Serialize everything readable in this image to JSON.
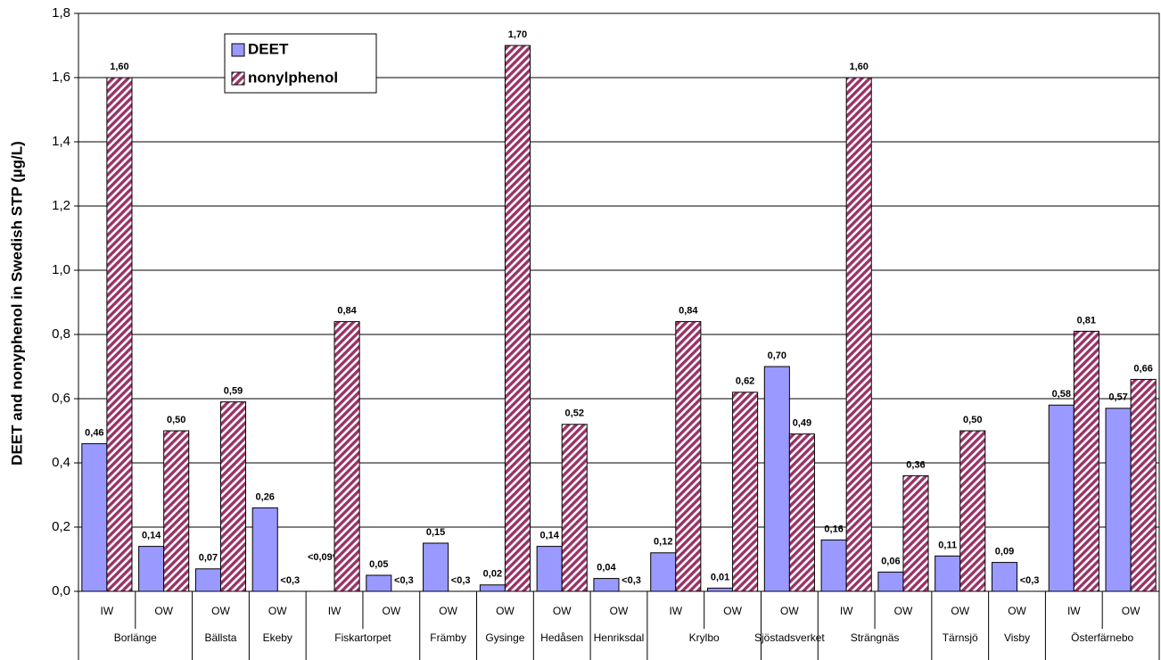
{
  "chart_data": {
    "type": "bar",
    "y_label": "DEET and nonyphenol in Swedish STP (µg/L)",
    "groups": [
      {
        "label": "Borlänge",
        "categories": [
          "IW",
          "OW"
        ]
      },
      {
        "label": "Bällsta",
        "categories": [
          "OW"
        ]
      },
      {
        "label": "Ekeby",
        "categories": [
          "OW"
        ]
      },
      {
        "label": "Fiskartorpet",
        "categories": [
          "IW",
          "OW"
        ]
      },
      {
        "label": "Främby",
        "categories": [
          "OW"
        ]
      },
      {
        "label": "Gysinge",
        "categories": [
          "OW"
        ]
      },
      {
        "label": "Hedåsen",
        "categories": [
          "OW"
        ]
      },
      {
        "label": "Henriksdal",
        "categories": [
          "OW"
        ]
      },
      {
        "label": "Krylbo",
        "categories": [
          "IW",
          "OW"
        ]
      },
      {
        "label": "Sjöstadsverket",
        "categories": [
          "OW"
        ]
      },
      {
        "label": "Strängnäs",
        "categories": [
          "IW",
          "OW"
        ]
      },
      {
        "label": "Tärnsjö",
        "categories": [
          "OW"
        ]
      },
      {
        "label": "Visby",
        "categories": [
          "OW"
        ]
      },
      {
        "label": "Österfärnebo",
        "categories": [
          "IW",
          "OW"
        ]
      }
    ],
    "series": [
      {
        "name": "DEET",
        "color": "#9999ff",
        "pattern": "solid",
        "values": [
          0.46,
          0.14,
          0.07,
          0.26,
          null,
          0.05,
          0.15,
          0.02,
          0.14,
          0.04,
          0.12,
          0.01,
          0.7,
          0.16,
          0.06,
          0.11,
          0.09,
          0.58,
          0.57
        ],
        "value_labels": [
          "0,46",
          "0,14",
          "0,07",
          "0,26",
          "<0,09*",
          "0,05",
          "0,15",
          "0,02",
          "0,14",
          "0,04",
          "0,12",
          "0,01",
          "0,70",
          "0,16",
          "0,06",
          "0,11",
          "0,09",
          "0,58",
          "0,57"
        ]
      },
      {
        "name": "nonylphenol",
        "color": "#993366",
        "pattern": "diagonal",
        "values": [
          1.6,
          0.5,
          0.59,
          null,
          0.84,
          null,
          null,
          1.7,
          0.52,
          null,
          0.84,
          0.62,
          0.49,
          1.6,
          0.36,
          0.5,
          null,
          0.81,
          0.66
        ],
        "value_labels": [
          "1,60",
          "0,50",
          "0,59",
          "<0,3",
          "0,84",
          "<0,3",
          "<0,3",
          "1,70",
          "0,52",
          "<0,3",
          "0,84",
          "0,62",
          "0,49",
          "1,60",
          "0,36",
          "0,50",
          "<0,3",
          "0,81",
          "0,66"
        ]
      }
    ],
    "ylim": [
      0,
      1.8
    ],
    "yticks": [
      {
        "value": 0,
        "label": "0,0"
      },
      {
        "value": 0.2,
        "label": "0,2"
      },
      {
        "value": 0.4,
        "label": "0,4"
      },
      {
        "value": 0.6,
        "label": "0,6"
      },
      {
        "value": 0.8,
        "label": "0,8"
      },
      {
        "value": 1.0,
        "label": "1,0"
      },
      {
        "value": 1.2,
        "label": "1,2"
      },
      {
        "value": 1.4,
        "label": "1,4"
      },
      {
        "value": 1.6,
        "label": "1,6"
      },
      {
        "value": 1.8,
        "label": "1,8"
      }
    ],
    "grid": true
  }
}
